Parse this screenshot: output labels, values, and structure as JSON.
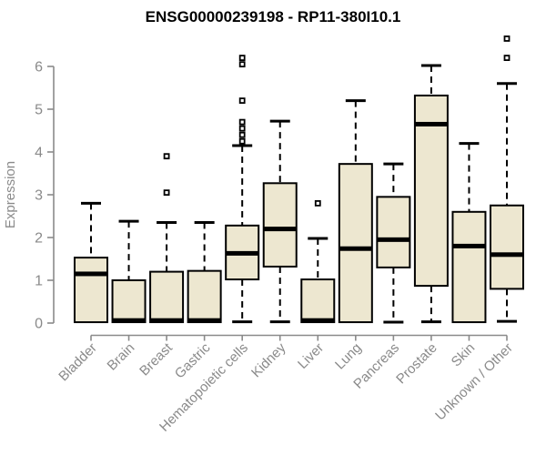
{
  "colors": {
    "box_fill": "#ede7d0",
    "box_stroke": "#000000",
    "median_color": "#000000",
    "whisker_color": "#000000",
    "axis_color": "#8a8a8a",
    "tick_label_color": "#8a8a8a",
    "title_color": "#000000",
    "background": "#ffffff"
  },
  "chart_data": {
    "type": "box",
    "title": "ENSG00000239198 - RP11-380I10.1",
    "xlabel": "",
    "ylabel": "Expression",
    "ylim": [
      0,
      6.8
    ],
    "yticks": [
      0,
      1,
      2,
      3,
      4,
      5,
      6
    ],
    "grid": false,
    "legend": "none",
    "categories": [
      "Bladder",
      "Brain",
      "Breast",
      "Gastric",
      "Hematopoietic cells",
      "Kidney",
      "Liver",
      "Lung",
      "Pancreas",
      "Prostate",
      "Skin",
      "Unknown / Other"
    ],
    "series": [
      {
        "name": "Bladder",
        "whisker_low": 0.02,
        "q1": 0.02,
        "median": 1.15,
        "q3": 1.53,
        "whisker_high": 2.8,
        "outliers": []
      },
      {
        "name": "Brain",
        "whisker_low": 0.02,
        "q1": 0.02,
        "median": 0.06,
        "q3": 1.0,
        "whisker_high": 2.38,
        "outliers": []
      },
      {
        "name": "Breast",
        "whisker_low": 0.02,
        "q1": 0.02,
        "median": 0.06,
        "q3": 1.2,
        "whisker_high": 2.35,
        "outliers": [
          3.05,
          3.9
        ]
      },
      {
        "name": "Gastric",
        "whisker_low": 0.02,
        "q1": 0.02,
        "median": 0.06,
        "q3": 1.22,
        "whisker_high": 2.35,
        "outliers": []
      },
      {
        "name": "Hematopoietic cells",
        "whisker_low": 0.03,
        "q1": 1.02,
        "median": 1.63,
        "q3": 2.28,
        "whisker_high": 4.15,
        "outliers": [
          4.25,
          4.4,
          4.55,
          4.7,
          5.2,
          6.05,
          6.2
        ]
      },
      {
        "name": "Kidney",
        "whisker_low": 0.03,
        "q1": 1.32,
        "median": 2.2,
        "q3": 3.27,
        "whisker_high": 4.72,
        "outliers": []
      },
      {
        "name": "Liver",
        "whisker_low": 0.02,
        "q1": 0.02,
        "median": 0.06,
        "q3": 1.02,
        "whisker_high": 1.98,
        "outliers": [
          2.8
        ]
      },
      {
        "name": "Lung",
        "whisker_low": 0.02,
        "q1": 0.02,
        "median": 1.74,
        "q3": 3.72,
        "whisker_high": 5.2,
        "outliers": []
      },
      {
        "name": "Pancreas",
        "whisker_low": 0.02,
        "q1": 1.3,
        "median": 1.95,
        "q3": 2.95,
        "whisker_high": 3.72,
        "outliers": []
      },
      {
        "name": "Prostate",
        "whisker_low": 0.03,
        "q1": 0.87,
        "median": 4.65,
        "q3": 5.32,
        "whisker_high": 6.02,
        "outliers": []
      },
      {
        "name": "Skin",
        "whisker_low": 0.02,
        "q1": 0.02,
        "median": 1.8,
        "q3": 2.6,
        "whisker_high": 4.2,
        "outliers": []
      },
      {
        "name": "Unknown / Other",
        "whisker_low": 0.04,
        "q1": 0.8,
        "median": 1.6,
        "q3": 2.75,
        "whisker_high": 5.6,
        "outliers": [
          6.2,
          6.65
        ]
      }
    ]
  }
}
